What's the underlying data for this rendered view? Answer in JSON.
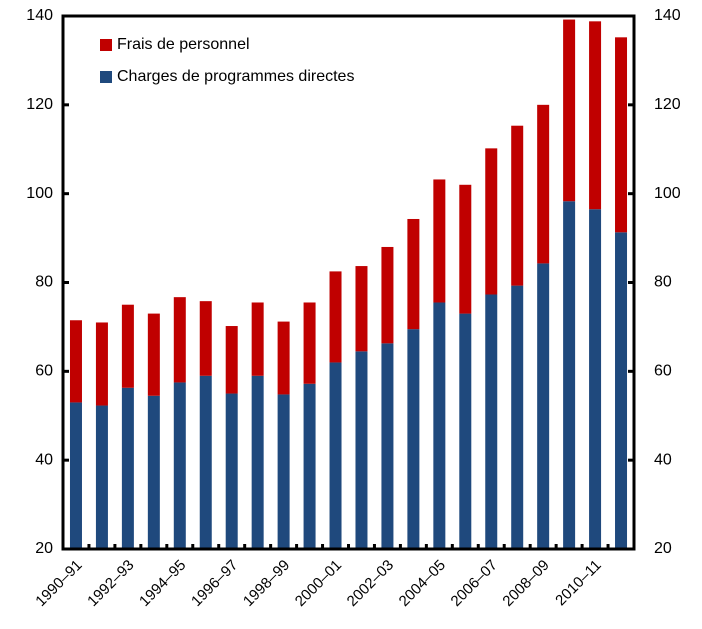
{
  "chart_data": {
    "type": "stacked-bar",
    "categories": [
      "1990–91",
      null,
      "1992–93",
      null,
      "1994–95",
      null,
      "1996–97",
      null,
      "1998–99",
      null,
      "2000–01",
      null,
      "2002–03",
      null,
      "2004–05",
      null,
      "2006–07",
      null,
      "2008–09",
      null,
      "2010–11",
      null
    ],
    "series": [
      {
        "name": "Charges de programmes directes",
        "color": "#1f497d",
        "values": [
          33,
          32.3,
          36.3,
          34.5,
          37.5,
          39,
          35,
          39,
          34.8,
          37.2,
          42,
          44.5,
          46.3,
          49.5,
          55.5,
          53,
          57.3,
          59.3,
          64.3,
          78.3,
          76.5,
          71.3
        ]
      },
      {
        "name": "Frais de personnel",
        "color": "#c00000",
        "values": [
          18.5,
          18.7,
          18.7,
          18.5,
          19.2,
          16.8,
          15.2,
          16.5,
          16.4,
          18.3,
          20.5,
          19.2,
          21.7,
          24.8,
          27.7,
          29,
          32.9,
          36,
          35.7,
          40.9,
          42.3,
          43.9
        ]
      }
    ],
    "ylim": [
      20,
      140
    ],
    "yticks": [
      20,
      40,
      60,
      80,
      100,
      120,
      140
    ],
    "y2lim": [
      20,
      140
    ],
    "y2ticks": [
      20,
      40,
      60,
      80,
      100,
      120,
      140
    ]
  }
}
